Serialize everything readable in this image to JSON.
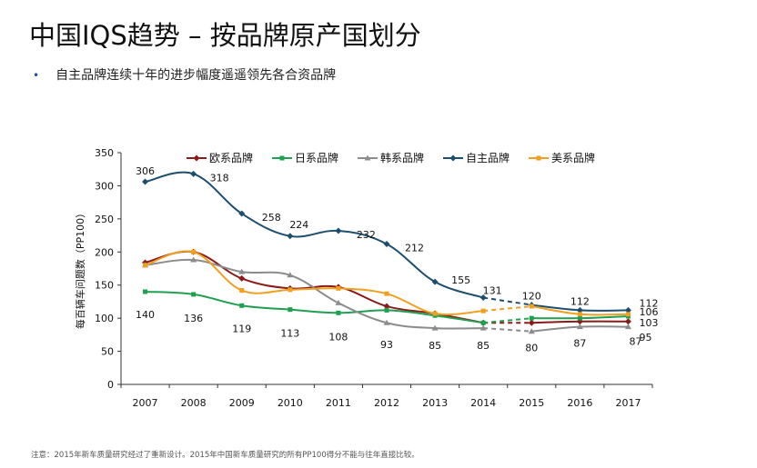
{
  "header": {
    "title": "中国IQS趋势 – 按品牌原产国划分",
    "bullet": "自主品牌连续十年的进步幅度遥遥领先各合资品牌"
  },
  "footnote": "注意：2015年新车质量研究经过了重新设计。2015年中国新车质量研究的所有PP100得分不能与往年直接比较。",
  "chart_data": {
    "type": "line",
    "title": "",
    "xlabel": "",
    "ylabel": "每百辆车问题数（PP100）",
    "ylim": [
      0,
      350
    ],
    "yticks": [
      0,
      50,
      100,
      150,
      200,
      250,
      300,
      350
    ],
    "x": [
      "2007",
      "2008",
      "2009",
      "2010",
      "2011",
      "2012",
      "2013",
      "2014",
      "2015",
      "2016",
      "2017"
    ],
    "series": [
      {
        "name": "欧系品牌",
        "color": "#8b1a1a",
        "marker": "diamond",
        "values": [
          184,
          200,
          160,
          145,
          147,
          118,
          107,
          93,
          93,
          95,
          95
        ]
      },
      {
        "name": "日系品牌",
        "color": "#1fa050",
        "marker": "square",
        "values": [
          140,
          136,
          119,
          113,
          108,
          112,
          104,
          93,
          100,
          100,
          103
        ]
      },
      {
        "name": "韩系品牌",
        "color": "#8c8c8c",
        "marker": "triangle",
        "values": [
          180,
          188,
          170,
          165,
          123,
          93,
          85,
          85,
          80,
          87,
          87
        ]
      },
      {
        "name": "自主品牌",
        "color": "#1d4e6e",
        "marker": "diamond",
        "values": [
          306,
          318,
          258,
          224,
          232,
          212,
          155,
          131,
          120,
          112,
          112
        ]
      },
      {
        "name": "美系品牌",
        "color": "#f0a020",
        "marker": "square",
        "values": [
          180,
          200,
          142,
          143,
          145,
          137,
          107,
          111,
          118,
          106,
          106
        ]
      }
    ],
    "labels": [
      {
        "series": "自主品牌",
        "index": 0,
        "text": "306"
      },
      {
        "series": "自主品牌",
        "index": 1,
        "text": "318"
      },
      {
        "series": "自主品牌",
        "index": 2,
        "text": "258"
      },
      {
        "series": "自主品牌",
        "index": 3,
        "text": "224"
      },
      {
        "series": "自主品牌",
        "index": 4,
        "text": "232"
      },
      {
        "series": "自主品牌",
        "index": 5,
        "text": "212"
      },
      {
        "series": "自主品牌",
        "index": 6,
        "text": "155"
      },
      {
        "series": "自主品牌",
        "index": 7,
        "text": "131"
      },
      {
        "series": "自主品牌",
        "index": 8,
        "text": "120"
      },
      {
        "series": "自主品牌",
        "index": 9,
        "text": "112"
      },
      {
        "series": "自主品牌",
        "index": 10,
        "text": "112"
      },
      {
        "series": "日系品牌",
        "index": 0,
        "text": "140"
      },
      {
        "series": "日系品牌",
        "index": 1,
        "text": "136"
      },
      {
        "series": "日系品牌",
        "index": 2,
        "text": "119"
      },
      {
        "series": "日系品牌",
        "index": 3,
        "text": "113"
      },
      {
        "series": "日系品牌",
        "index": 4,
        "text": "108"
      },
      {
        "series": "韩系品牌",
        "index": 5,
        "text": "93"
      },
      {
        "series": "韩系品牌",
        "index": 6,
        "text": "85"
      },
      {
        "series": "韩系品牌",
        "index": 7,
        "text": "85"
      },
      {
        "series": "韩系品牌",
        "index": 8,
        "text": "80"
      },
      {
        "series": "韩系品牌",
        "index": 9,
        "text": "87"
      },
      {
        "series": "韩系品牌",
        "index": 10,
        "text": "87"
      },
      {
        "series": "美系品牌",
        "index": 10,
        "text": "106"
      },
      {
        "series": "日系品牌",
        "index": 10,
        "text": "103"
      },
      {
        "series": "欧系品牌",
        "index": 10,
        "text": "95"
      }
    ]
  }
}
